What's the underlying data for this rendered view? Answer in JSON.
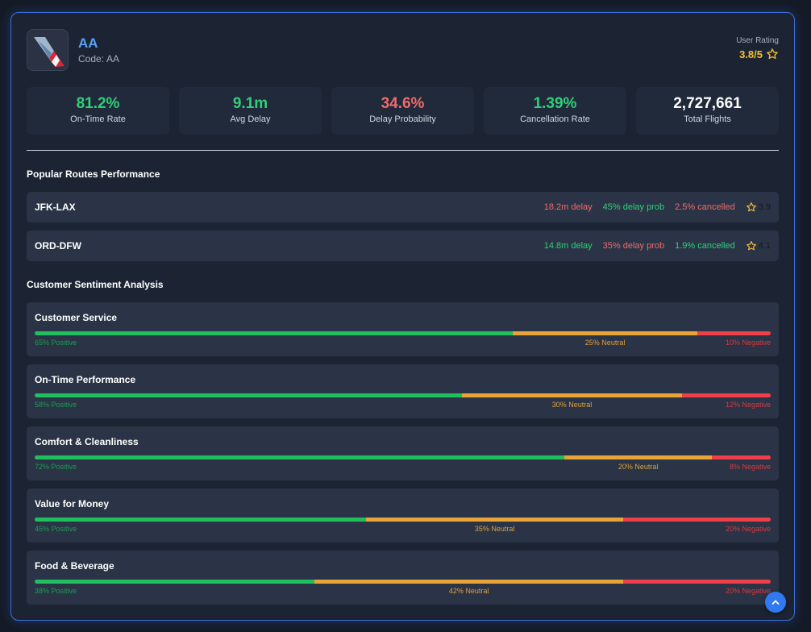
{
  "airline": {
    "name": "AA",
    "code_label": "Code:",
    "code": "AA",
    "logo_icon": "american-airlines-logo-icon"
  },
  "rating": {
    "label": "User Rating",
    "value": "3.8/5",
    "icon": "star-outline-icon"
  },
  "stats": [
    {
      "value": "81.2%",
      "label": "On-Time Rate",
      "color": "#2fd079"
    },
    {
      "value": "9.1m",
      "label": "Avg Delay",
      "color": "#2fd079"
    },
    {
      "value": "34.6%",
      "label": "Delay Probability",
      "color": "#f16a6a"
    },
    {
      "value": "1.39%",
      "label": "Cancellation Rate",
      "color": "#2fd079"
    },
    {
      "value": "2,727,661",
      "label": "Total Flights",
      "color": "#ffffff"
    }
  ],
  "routes_section": {
    "title": "Popular Routes Performance",
    "routes": [
      {
        "name": "JFK-LAX",
        "delay": "18.2m delay",
        "delay_status": "bad",
        "delay_prob": "45% delay prob",
        "delay_prob_status": "good",
        "cancelled": "2.5% cancelled",
        "cancelled_status": "bad",
        "rating": "3.9"
      },
      {
        "name": "ORD-DFW",
        "delay": "14.8m delay",
        "delay_status": "good",
        "delay_prob": "35% delay prob",
        "delay_prob_status": "bad",
        "cancelled": "1.9% cancelled",
        "cancelled_status": "good",
        "rating": "4.1"
      }
    ]
  },
  "sentiment_section": {
    "title": "Customer Sentiment Analysis",
    "items": [
      {
        "title": "Customer Service",
        "positive": 65,
        "neutral": 25,
        "negative": 10,
        "positive_label": "65% Positive",
        "neutral_label": "25% Neutral",
        "negative_label": "10% Negative"
      },
      {
        "title": "On-Time Performance",
        "positive": 58,
        "neutral": 30,
        "negative": 12,
        "positive_label": "58% Positive",
        "neutral_label": "30% Neutral",
        "negative_label": "12% Negative"
      },
      {
        "title": "Comfort & Cleanliness",
        "positive": 72,
        "neutral": 20,
        "negative": 8,
        "positive_label": "72% Positive",
        "neutral_label": "20% Neutral",
        "negative_label": "8% Negative"
      },
      {
        "title": "Value for Money",
        "positive": 45,
        "neutral": 35,
        "negative": 20,
        "positive_label": "45% Positive",
        "neutral_label": "35% Neutral",
        "negative_label": "20% Negative"
      },
      {
        "title": "Food & Beverage",
        "positive": 38,
        "neutral": 42,
        "negative": 20,
        "positive_label": "38% Positive",
        "neutral_label": "42% Neutral",
        "negative_label": "20% Negative"
      }
    ]
  },
  "colors": {
    "accent": "#3d6fd6",
    "good": "#2fd079",
    "bad": "#f16a6a",
    "positive": "#1fbf5e",
    "neutral": "#e8a437",
    "negative": "#ef3f48",
    "star": "#f2c033"
  },
  "scroll_top_icon": "chevron-up-icon"
}
